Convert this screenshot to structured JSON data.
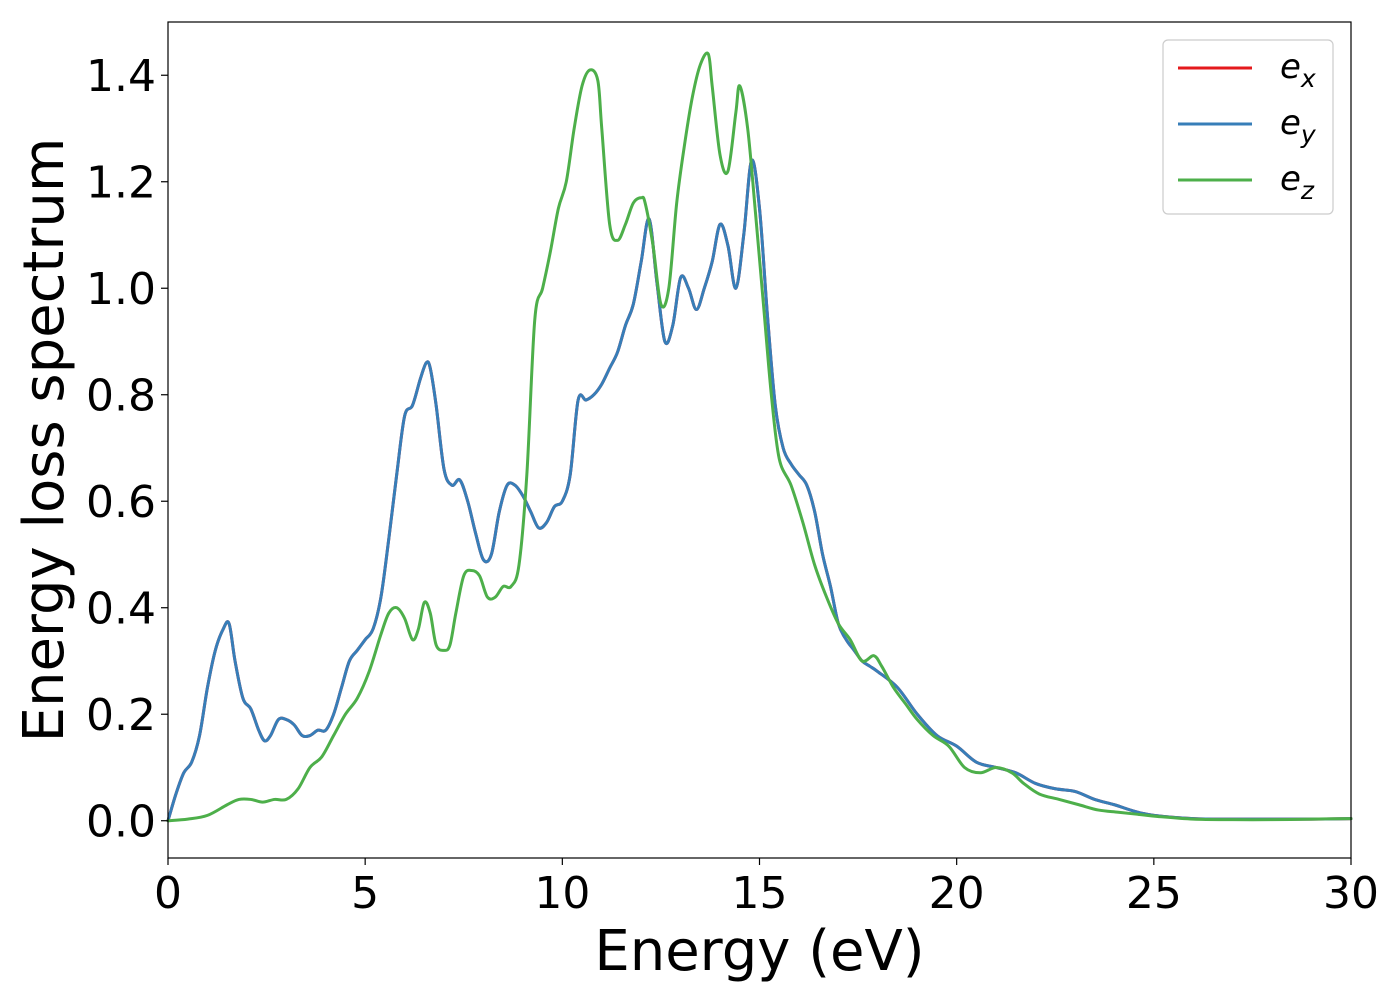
{
  "chart_data": {
    "type": "line",
    "xlabel": "Energy (eV)",
    "ylabel": "Energy loss spectrum",
    "xlim": [
      0,
      30
    ],
    "ylim": [
      -0.07,
      1.5
    ],
    "xticks": [
      0,
      5,
      10,
      15,
      20,
      25,
      30
    ],
    "xtick_labels": [
      "0",
      "5",
      "10",
      "15",
      "20",
      "25",
      "30"
    ],
    "yticks": [
      0.0,
      0.2,
      0.4,
      0.6,
      0.8,
      1.0,
      1.2,
      1.4
    ],
    "ytick_labels": [
      "0.0",
      "0.2",
      "0.4",
      "0.6",
      "0.8",
      "1.0",
      "1.2",
      "1.4"
    ],
    "grid": false,
    "legend_position": "top-right",
    "series": [
      {
        "key": "ex",
        "name": "e_x",
        "base": "e",
        "sub": "x",
        "color": "#e41a1c",
        "x": [
          0,
          0.2,
          0.4,
          0.6,
          0.8,
          1.0,
          1.2,
          1.4,
          1.55,
          1.7,
          1.9,
          2.1,
          2.3,
          2.45,
          2.6,
          2.8,
          3.0,
          3.2,
          3.4,
          3.6,
          3.8,
          4.0,
          4.2,
          4.4,
          4.6,
          4.8,
          5.0,
          5.2,
          5.4,
          5.6,
          5.8,
          6.0,
          6.2,
          6.4,
          6.55,
          6.65,
          6.8,
          7.0,
          7.2,
          7.4,
          7.6,
          7.8,
          8.0,
          8.2,
          8.4,
          8.6,
          8.8,
          9.0,
          9.2,
          9.4,
          9.6,
          9.8,
          10.0,
          10.2,
          10.4,
          10.6,
          10.8,
          11.0,
          11.2,
          11.4,
          11.6,
          11.8,
          12.0,
          12.2,
          12.4,
          12.6,
          12.8,
          13.0,
          13.2,
          13.4,
          13.6,
          13.8,
          14.0,
          14.2,
          14.4,
          14.6,
          14.8,
          15.0,
          15.2,
          15.4,
          15.6,
          15.8,
          16.0,
          16.2,
          16.4,
          16.6,
          16.8,
          17.0,
          17.2,
          17.4,
          17.6,
          17.8,
          18.0,
          18.5,
          19.0,
          19.5,
          20.0,
          20.5,
          21.0,
          21.5,
          22.0,
          22.5,
          23.0,
          23.5,
          24.0,
          24.5,
          25.0,
          26.0,
          27.0,
          28.0,
          29.0,
          30.0
        ],
        "y": [
          0.0,
          0.05,
          0.09,
          0.11,
          0.16,
          0.25,
          0.32,
          0.36,
          0.37,
          0.3,
          0.23,
          0.21,
          0.17,
          0.15,
          0.16,
          0.19,
          0.19,
          0.18,
          0.16,
          0.16,
          0.17,
          0.17,
          0.2,
          0.25,
          0.3,
          0.32,
          0.34,
          0.36,
          0.42,
          0.53,
          0.65,
          0.76,
          0.78,
          0.83,
          0.86,
          0.85,
          0.78,
          0.66,
          0.63,
          0.64,
          0.6,
          0.54,
          0.49,
          0.5,
          0.58,
          0.63,
          0.63,
          0.61,
          0.58,
          0.55,
          0.56,
          0.59,
          0.6,
          0.65,
          0.79,
          0.79,
          0.8,
          0.82,
          0.85,
          0.88,
          0.93,
          0.97,
          1.05,
          1.13,
          1.01,
          0.9,
          0.93,
          1.02,
          1.0,
          0.96,
          1.0,
          1.05,
          1.12,
          1.08,
          1.0,
          1.1,
          1.24,
          1.15,
          0.95,
          0.78,
          0.7,
          0.67,
          0.65,
          0.63,
          0.58,
          0.5,
          0.44,
          0.37,
          0.34,
          0.32,
          0.3,
          0.29,
          0.28,
          0.25,
          0.2,
          0.16,
          0.14,
          0.11,
          0.1,
          0.09,
          0.07,
          0.06,
          0.055,
          0.04,
          0.03,
          0.018,
          0.01,
          0.004,
          0.003,
          0.003,
          0.003,
          0.004
        ]
      },
      {
        "key": "ey",
        "name": "e_y",
        "base": "e",
        "sub": "y",
        "color": "#377eb8",
        "x": [
          0,
          0.2,
          0.4,
          0.6,
          0.8,
          1.0,
          1.2,
          1.4,
          1.55,
          1.7,
          1.9,
          2.1,
          2.3,
          2.45,
          2.6,
          2.8,
          3.0,
          3.2,
          3.4,
          3.6,
          3.8,
          4.0,
          4.2,
          4.4,
          4.6,
          4.8,
          5.0,
          5.2,
          5.4,
          5.6,
          5.8,
          6.0,
          6.2,
          6.4,
          6.55,
          6.65,
          6.8,
          7.0,
          7.2,
          7.4,
          7.6,
          7.8,
          8.0,
          8.2,
          8.4,
          8.6,
          8.8,
          9.0,
          9.2,
          9.4,
          9.6,
          9.8,
          10.0,
          10.2,
          10.4,
          10.6,
          10.8,
          11.0,
          11.2,
          11.4,
          11.6,
          11.8,
          12.0,
          12.2,
          12.4,
          12.6,
          12.8,
          13.0,
          13.2,
          13.4,
          13.6,
          13.8,
          14.0,
          14.2,
          14.4,
          14.6,
          14.8,
          15.0,
          15.2,
          15.4,
          15.6,
          15.8,
          16.0,
          16.2,
          16.4,
          16.6,
          16.8,
          17.0,
          17.2,
          17.4,
          17.6,
          17.8,
          18.0,
          18.5,
          19.0,
          19.5,
          20.0,
          20.5,
          21.0,
          21.5,
          22.0,
          22.5,
          23.0,
          23.5,
          24.0,
          24.5,
          25.0,
          26.0,
          27.0,
          28.0,
          29.0,
          30.0
        ],
        "y": [
          0.0,
          0.05,
          0.09,
          0.11,
          0.16,
          0.25,
          0.32,
          0.36,
          0.37,
          0.3,
          0.23,
          0.21,
          0.17,
          0.15,
          0.16,
          0.19,
          0.19,
          0.18,
          0.16,
          0.16,
          0.17,
          0.17,
          0.2,
          0.25,
          0.3,
          0.32,
          0.34,
          0.36,
          0.42,
          0.53,
          0.65,
          0.76,
          0.78,
          0.83,
          0.86,
          0.85,
          0.78,
          0.66,
          0.63,
          0.64,
          0.6,
          0.54,
          0.49,
          0.5,
          0.58,
          0.63,
          0.63,
          0.61,
          0.58,
          0.55,
          0.56,
          0.59,
          0.6,
          0.65,
          0.79,
          0.79,
          0.8,
          0.82,
          0.85,
          0.88,
          0.93,
          0.97,
          1.05,
          1.13,
          1.01,
          0.9,
          0.93,
          1.02,
          1.0,
          0.96,
          1.0,
          1.05,
          1.12,
          1.08,
          1.0,
          1.1,
          1.24,
          1.15,
          0.95,
          0.78,
          0.7,
          0.67,
          0.65,
          0.63,
          0.58,
          0.5,
          0.44,
          0.37,
          0.34,
          0.32,
          0.3,
          0.29,
          0.28,
          0.25,
          0.2,
          0.16,
          0.14,
          0.11,
          0.1,
          0.09,
          0.07,
          0.06,
          0.055,
          0.04,
          0.03,
          0.018,
          0.01,
          0.004,
          0.003,
          0.003,
          0.003,
          0.004
        ]
      },
      {
        "key": "ez",
        "name": "e_z",
        "base": "e",
        "sub": "z",
        "color": "#4daf4a",
        "x": [
          0,
          0.5,
          1.0,
          1.5,
          1.8,
          2.1,
          2.4,
          2.7,
          3.0,
          3.3,
          3.6,
          3.9,
          4.2,
          4.5,
          4.8,
          5.1,
          5.4,
          5.6,
          5.8,
          6.0,
          6.2,
          6.35,
          6.5,
          6.65,
          6.8,
          7.0,
          7.15,
          7.3,
          7.5,
          7.7,
          7.9,
          8.1,
          8.3,
          8.5,
          8.7,
          8.9,
          9.1,
          9.3,
          9.5,
          9.7,
          9.9,
          10.1,
          10.3,
          10.5,
          10.7,
          10.9,
          11.0,
          11.2,
          11.4,
          11.6,
          11.8,
          12.0,
          12.1,
          12.3,
          12.5,
          12.7,
          12.9,
          13.1,
          13.3,
          13.5,
          13.7,
          13.8,
          14.0,
          14.2,
          14.4,
          14.5,
          14.7,
          14.9,
          15.1,
          15.3,
          15.5,
          15.8,
          16.1,
          16.4,
          16.7,
          17.0,
          17.3,
          17.6,
          17.9,
          18.1,
          18.4,
          18.7,
          19.0,
          19.4,
          19.8,
          20.2,
          20.6,
          21.0,
          21.4,
          21.7,
          22.1,
          22.6,
          23.1,
          23.6,
          24.1,
          24.6,
          25.1,
          26.0,
          27.0,
          28.0,
          29.0,
          30.0
        ],
        "y": [
          0.0,
          0.003,
          0.01,
          0.03,
          0.04,
          0.04,
          0.035,
          0.04,
          0.04,
          0.06,
          0.1,
          0.12,
          0.16,
          0.2,
          0.23,
          0.28,
          0.35,
          0.39,
          0.4,
          0.38,
          0.34,
          0.36,
          0.41,
          0.39,
          0.33,
          0.32,
          0.33,
          0.39,
          0.46,
          0.47,
          0.46,
          0.42,
          0.42,
          0.44,
          0.44,
          0.48,
          0.65,
          0.94,
          1.0,
          1.07,
          1.15,
          1.2,
          1.3,
          1.38,
          1.41,
          1.39,
          1.3,
          1.12,
          1.09,
          1.12,
          1.16,
          1.17,
          1.16,
          1.08,
          0.97,
          1.0,
          1.16,
          1.27,
          1.36,
          1.42,
          1.44,
          1.38,
          1.25,
          1.22,
          1.33,
          1.38,
          1.3,
          1.14,
          0.97,
          0.8,
          0.68,
          0.63,
          0.56,
          0.48,
          0.42,
          0.37,
          0.34,
          0.3,
          0.31,
          0.29,
          0.25,
          0.22,
          0.19,
          0.16,
          0.14,
          0.1,
          0.09,
          0.1,
          0.09,
          0.07,
          0.05,
          0.04,
          0.03,
          0.02,
          0.016,
          0.012,
          0.008,
          0.003,
          0.002,
          0.002,
          0.003,
          0.004
        ]
      }
    ]
  }
}
